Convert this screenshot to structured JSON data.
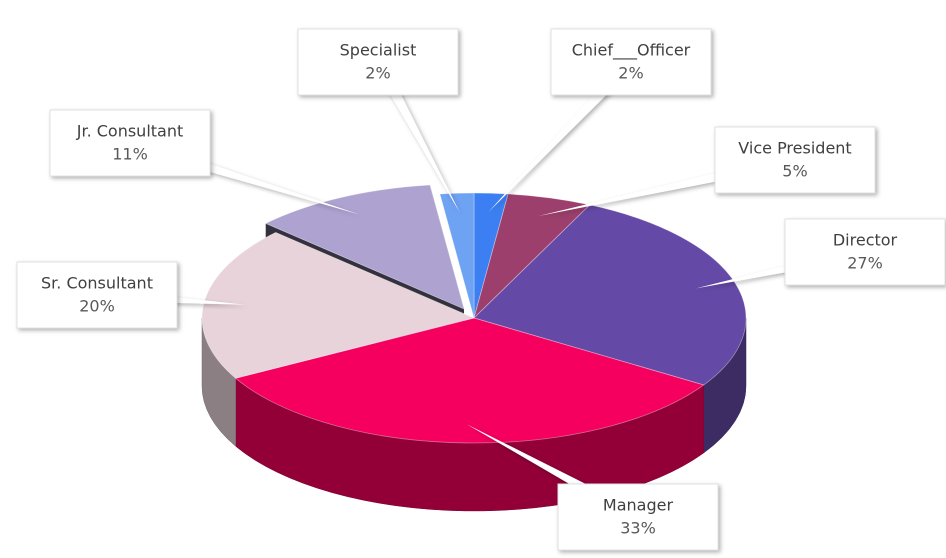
{
  "chart_data": {
    "type": "pie",
    "categories": [
      "Chief___Officer",
      "Vice President",
      "Director",
      "Manager",
      "Sr. Consultant",
      "Jr. Consultant",
      "Specialist"
    ],
    "values": [
      2,
      5,
      27,
      33,
      20,
      11,
      2
    ],
    "value_labels": [
      "2%",
      "5%",
      "27%",
      "33%",
      "20%",
      "11%",
      "2%"
    ],
    "colors": [
      "#3b7ff2",
      "#9c3f6c",
      "#6549a6",
      "#f5005e",
      "#e8d3db",
      "#aea2d0",
      "#6ea2f2"
    ],
    "exploded": [
      "Jr. Consultant"
    ]
  }
}
